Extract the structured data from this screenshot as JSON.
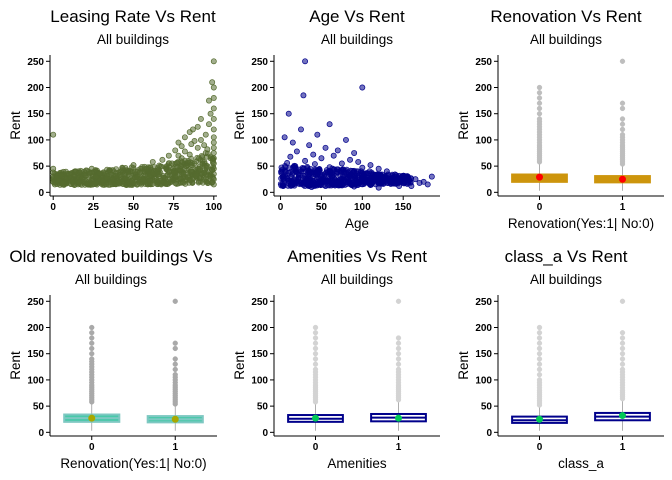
{
  "chart_data": [
    {
      "type": "scatter",
      "title": "Leasing Rate Vs Rent",
      "subtitle": "All buildings",
      "xlabel": "Leasing Rate",
      "ylabel": "Rent",
      "xlim": [
        -2,
        102
      ],
      "ylim": [
        -7,
        262
      ],
      "xticks": [
        0,
        25,
        50,
        75,
        100
      ],
      "yticks": [
        0,
        50,
        100,
        150,
        200,
        250
      ],
      "point_color": "#556b2f",
      "points": [
        [
          0,
          110
        ],
        [
          0,
          45
        ],
        [
          0,
          38
        ],
        [
          0,
          30
        ],
        [
          0,
          25
        ],
        [
          0,
          20
        ],
        [
          1,
          15
        ],
        [
          2,
          28
        ],
        [
          3,
          22
        ],
        [
          5,
          32
        ],
        [
          6,
          18
        ],
        [
          8,
          26
        ],
        [
          10,
          35
        ],
        [
          12,
          22
        ],
        [
          14,
          40
        ],
        [
          16,
          19
        ],
        [
          18,
          28
        ],
        [
          20,
          33
        ],
        [
          22,
          24
        ],
        [
          24,
          45
        ],
        [
          25,
          16
        ],
        [
          27,
          30
        ],
        [
          29,
          36
        ],
        [
          31,
          22
        ],
        [
          33,
          28
        ],
        [
          35,
          42
        ],
        [
          37,
          25
        ],
        [
          39,
          31
        ],
        [
          41,
          19
        ],
        [
          43,
          47
        ],
        [
          45,
          27
        ],
        [
          47,
          34
        ],
        [
          49,
          22
        ],
        [
          50,
          52
        ],
        [
          52,
          29
        ],
        [
          54,
          38
        ],
        [
          56,
          24
        ],
        [
          58,
          45
        ],
        [
          60,
          31
        ],
        [
          62,
          58
        ],
        [
          63,
          26
        ],
        [
          65,
          40
        ],
        [
          66,
          35
        ],
        [
          68,
          62
        ],
        [
          69,
          28
        ],
        [
          70,
          48
        ],
        [
          71,
          33
        ],
        [
          72,
          70
        ],
        [
          73,
          25
        ],
        [
          74,
          55
        ],
        [
          75,
          38
        ],
        [
          76,
          80
        ],
        [
          77,
          30
        ],
        [
          78,
          95
        ],
        [
          79,
          42
        ],
        [
          80,
          65
        ],
        [
          81,
          35
        ],
        [
          82,
          105
        ],
        [
          83,
          50
        ],
        [
          84,
          28
        ],
        [
          85,
          72
        ],
        [
          86,
          40
        ],
        [
          87,
          120
        ],
        [
          88,
          55
        ],
        [
          89,
          32
        ],
        [
          90,
          85
        ],
        [
          91,
          45
        ],
        [
          92,
          100
        ],
        [
          93,
          60
        ],
        [
          94,
          38
        ],
        [
          95,
          75
        ],
        [
          96,
          50
        ],
        [
          97,
          130
        ],
        [
          98,
          65
        ],
        [
          99,
          42
        ],
        [
          100,
          250
        ],
        [
          100,
          200
        ],
        [
          100,
          180
        ],
        [
          100,
          160
        ],
        [
          100,
          140
        ],
        [
          100,
          120
        ],
        [
          100,
          105
        ],
        [
          100,
          95
        ],
        [
          100,
          85
        ],
        [
          100,
          75
        ],
        [
          100,
          65
        ],
        [
          100,
          55
        ],
        [
          100,
          45
        ],
        [
          100,
          35
        ],
        [
          100,
          25
        ],
        [
          100,
          15
        ],
        [
          99,
          210
        ],
        [
          98,
          150
        ],
        [
          97,
          175
        ],
        [
          95,
          110
        ],
        [
          90,
          125
        ],
        [
          85,
          115
        ],
        [
          80,
          88
        ],
        [
          92,
          140
        ],
        [
          88,
          98
        ],
        [
          94,
          90
        ],
        [
          96,
          82
        ],
        [
          86,
          92
        ],
        [
          82,
          78
        ],
        [
          78,
          70
        ]
      ],
      "dense_band": [
        [
          0,
          14,
          38
        ],
        [
          10,
          14,
          40
        ],
        [
          20,
          14,
          42
        ],
        [
          30,
          14,
          44
        ],
        [
          40,
          14,
          46
        ],
        [
          50,
          14,
          48
        ],
        [
          60,
          15,
          52
        ],
        [
          70,
          15,
          56
        ],
        [
          80,
          16,
          62
        ],
        [
          90,
          17,
          70
        ],
        [
          100,
          18,
          80
        ]
      ]
    },
    {
      "type": "scatter",
      "title": "Age Vs Rent",
      "subtitle": "All buildings",
      "xlabel": "Age",
      "ylabel": "Rent",
      "xlim": [
        -8,
        195
      ],
      "ylim": [
        -7,
        262
      ],
      "xticks": [
        0,
        50,
        100,
        150
      ],
      "yticks": [
        0,
        50,
        100,
        150,
        200,
        250
      ],
      "point_color": "#00008b",
      "points": [
        [
          30,
          250
        ],
        [
          100,
          200
        ],
        [
          28,
          185
        ],
        [
          10,
          150
        ],
        [
          60,
          130
        ],
        [
          25,
          120
        ],
        [
          45,
          110
        ],
        [
          5,
          105
        ],
        [
          80,
          100
        ],
        [
          15,
          95
        ],
        [
          35,
          90
        ],
        [
          55,
          85
        ],
        [
          70,
          80
        ],
        [
          20,
          78
        ],
        [
          90,
          75
        ],
        [
          40,
          72
        ],
        [
          65,
          70
        ],
        [
          12,
          68
        ],
        [
          50,
          65
        ],
        [
          85,
          62
        ],
        [
          30,
          60
        ],
        [
          95,
          58
        ],
        [
          8,
          56
        ],
        [
          75,
          55
        ],
        [
          42,
          54
        ],
        [
          110,
          52
        ],
        [
          18,
          50
        ],
        [
          60,
          48
        ],
        [
          100,
          47
        ],
        [
          33,
          46
        ],
        [
          120,
          45
        ],
        [
          70,
          44
        ],
        [
          2,
          43
        ],
        [
          48,
          42
        ],
        [
          90,
          41
        ],
        [
          25,
          40
        ],
        [
          130,
          40
        ],
        [
          58,
          39
        ],
        [
          80,
          38
        ],
        [
          15,
          37
        ],
        [
          105,
          36
        ],
        [
          40,
          35
        ],
        [
          140,
          34
        ],
        [
          65,
          33
        ],
        [
          5,
          32
        ],
        [
          115,
          31
        ],
        [
          50,
          30
        ],
        [
          95,
          29
        ],
        [
          22,
          28
        ],
        [
          150,
          27
        ],
        [
          75,
          26
        ],
        [
          35,
          25
        ],
        [
          125,
          24
        ],
        [
          60,
          23
        ],
        [
          10,
          22
        ],
        [
          100,
          21
        ],
        [
          45,
          20
        ],
        [
          135,
          19
        ],
        [
          85,
          18
        ],
        [
          28,
          17
        ],
        [
          155,
          16
        ],
        [
          70,
          15
        ],
        [
          110,
          14
        ],
        [
          3,
          13
        ],
        [
          55,
          12
        ],
        [
          145,
          12
        ],
        [
          90,
          11
        ],
        [
          38,
          10
        ],
        [
          120,
          9
        ],
        [
          165,
          25
        ],
        [
          175,
          20
        ],
        [
          185,
          30
        ],
        [
          160,
          12
        ],
        [
          170,
          18
        ],
        [
          180,
          15
        ]
      ],
      "dense_band": [
        [
          0,
          12,
          50
        ],
        [
          20,
          12,
          52
        ],
        [
          40,
          12,
          50
        ],
        [
          60,
          13,
          46
        ],
        [
          80,
          13,
          44
        ],
        [
          100,
          14,
          42
        ],
        [
          120,
          15,
          38
        ],
        [
          140,
          16,
          34
        ],
        [
          160,
          18,
          30
        ]
      ]
    },
    {
      "type": "box",
      "title": "Renovation Vs Rent",
      "subtitle": "All buildings",
      "xlabel": "Renovation(Yes:1| No:0)",
      "ylabel": "Rent",
      "categories": [
        "0",
        "1"
      ],
      "ylim": [
        -7,
        262
      ],
      "yticks": [
        0,
        50,
        100,
        150,
        200,
        250
      ],
      "box_fill": "#cd950c",
      "box_line": "#cd950c",
      "outlier_color": "#bebebe",
      "mean_color": "#ff0000",
      "boxes": [
        {
          "q1": 20,
          "median": 27,
          "q3": 34,
          "whisker_low": 3,
          "whisker_high": 55,
          "mean": 29,
          "outliers": [
            58,
            62,
            66,
            70,
            74,
            78,
            82,
            86,
            90,
            95,
            100,
            105,
            110,
            115,
            120,
            125,
            130,
            135,
            140,
            150,
            160,
            170,
            180,
            190,
            200
          ]
        },
        {
          "q1": 19,
          "median": 25,
          "q3": 31,
          "whisker_low": 3,
          "whisker_high": 50,
          "mean": 25,
          "outliers": [
            54,
            58,
            62,
            66,
            70,
            74,
            78,
            82,
            86,
            90,
            95,
            100,
            105,
            110,
            120,
            130,
            140,
            160,
            170,
            250
          ]
        }
      ]
    },
    {
      "type": "box",
      "title": "Old renovated buildings Vs",
      "subtitle": "All buildings",
      "xlabel": "Renovation(Yes:1| No:0)",
      "ylabel": "Rent",
      "categories": [
        "0",
        "1"
      ],
      "ylim": [
        -7,
        262
      ],
      "yticks": [
        0,
        50,
        100,
        150,
        200,
        250
      ],
      "box_fill": "#48c9a9",
      "box_line": "#7ec8c2",
      "outlier_color": "#a9a9a9",
      "mean_color": "#a8a800",
      "boxes": [
        {
          "q1": 20,
          "median": 27,
          "q3": 34,
          "whisker_low": 3,
          "whisker_high": 55,
          "mean": 27,
          "outliers": [
            58,
            62,
            66,
            70,
            74,
            78,
            82,
            86,
            90,
            95,
            100,
            105,
            110,
            115,
            120,
            125,
            130,
            135,
            140,
            150,
            160,
            170,
            180,
            190,
            200
          ]
        },
        {
          "q1": 19,
          "median": 25,
          "q3": 31,
          "whisker_low": 3,
          "whisker_high": 50,
          "mean": 25,
          "outliers": [
            54,
            58,
            62,
            66,
            70,
            74,
            78,
            82,
            86,
            90,
            95,
            100,
            105,
            110,
            120,
            130,
            140,
            160,
            170,
            250
          ]
        }
      ]
    },
    {
      "type": "box",
      "title": "Amenities Vs Rent",
      "subtitle": "All buildings",
      "xlabel": "Amenities",
      "ylabel": "Rent",
      "categories": [
        "0",
        "1"
      ],
      "ylim": [
        -7,
        262
      ],
      "yticks": [
        0,
        50,
        100,
        150,
        200,
        250
      ],
      "box_fill": "#ffffff",
      "box_line": "#00008b",
      "outlier_color": "#d3d3d3",
      "mean_color": "#00c957",
      "boxes": [
        {
          "q1": 20,
          "median": 26,
          "q3": 33,
          "whisker_low": 3,
          "whisker_high": 55,
          "mean": 27,
          "outliers": [
            58,
            62,
            66,
            70,
            74,
            78,
            82,
            86,
            90,
            95,
            100,
            105,
            110,
            115,
            120,
            130,
            140,
            150,
            160,
            170,
            180,
            190,
            200
          ]
        },
        {
          "q1": 21,
          "median": 28,
          "q3": 35,
          "whisker_low": 3,
          "whisker_high": 58,
          "mean": 27,
          "outliers": [
            62,
            66,
            70,
            74,
            78,
            82,
            86,
            90,
            95,
            100,
            105,
            110,
            115,
            120,
            130,
            140,
            150,
            160,
            170,
            180,
            250
          ]
        }
      ]
    },
    {
      "type": "box",
      "title": "class_a Vs Rent",
      "subtitle": "All buildings",
      "xlabel": "class_a",
      "ylabel": "Rent",
      "categories": [
        "0",
        "1"
      ],
      "ylim": [
        -7,
        262
      ],
      "yticks": [
        0,
        50,
        100,
        150,
        200,
        250
      ],
      "box_fill": "#ffffff",
      "box_line": "#00008b",
      "outlier_color": "#d3d3d3",
      "mean_color": "#00c957",
      "boxes": [
        {
          "q1": 18,
          "median": 23,
          "q3": 30,
          "whisker_low": 3,
          "whisker_high": 48,
          "mean": 25,
          "outliers": [
            52,
            56,
            60,
            64,
            68,
            72,
            76,
            80,
            85,
            90,
            95,
            100,
            110,
            120,
            130,
            140,
            150,
            160,
            170,
            180,
            190,
            200
          ]
        },
        {
          "q1": 23,
          "median": 30,
          "q3": 37,
          "whisker_low": 3,
          "whisker_high": 60,
          "mean": 32,
          "outliers": [
            64,
            68,
            72,
            76,
            80,
            85,
            90,
            95,
            100,
            105,
            110,
            115,
            120,
            130,
            140,
            150,
            160,
            170,
            180,
            190,
            250
          ]
        }
      ]
    }
  ]
}
